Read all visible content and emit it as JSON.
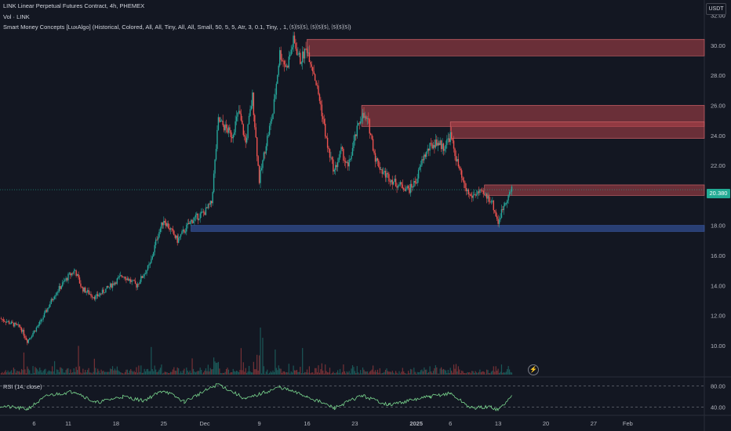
{
  "header": {
    "symbol_line": "LINK Linear Perpetual Futures Contract, 4h, PHEMEX",
    "volume_line": "Vol · LINK",
    "indicator_line": "Smart Money Concepts [LuxAlgo] (Historical, Colored, All, All, Tiny, All, All, Small, 50, 5, 5, Atr, 3, 0.1, Tiny, , 1, ⒮⒮⒮, ⒮⒮⒮, ⒮⒮⒮)",
    "rsi_line": "RSI (14, close)"
  },
  "currency": "USDT",
  "last_price_label": "20.380",
  "colors": {
    "background": "#131722",
    "up": "#26a69a",
    "down": "#ef5350",
    "supply_zone": "#b2444a",
    "demand_zone": "#2f4a8a",
    "rsi_line": "#7bd88f",
    "axis_text": "#b2b5be"
  },
  "chart_data": {
    "type": "candlestick",
    "title": "LINK Linear Perpetual Futures Contract, 4h, PHEMEX",
    "timeframe": "4h",
    "price_axis": {
      "ticks": [
        10,
        12,
        14,
        16,
        18,
        20,
        22,
        24,
        26,
        28,
        30,
        32
      ],
      "tick_labels": [
        "10.00",
        "12.00",
        "14.00",
        "16.00",
        "18.00",
        "20.00",
        "22.00",
        "24.00",
        "26.00",
        "28.00",
        "30.00",
        "32.00"
      ],
      "range": [
        9.0,
        32.5
      ]
    },
    "time_axis": {
      "labels": [
        "6",
        "11",
        "18",
        "25",
        "Dec",
        "9",
        "16",
        "23",
        "2025",
        "6",
        "13",
        "20",
        "27",
        "Feb"
      ]
    },
    "price_path": [
      {
        "date": "2024-11-01",
        "close": 11.8
      },
      {
        "date": "2024-11-04",
        "close": 11.2
      },
      {
        "date": "2024-11-05",
        "close": 10.3
      },
      {
        "date": "2024-11-07",
        "close": 11.6
      },
      {
        "date": "2024-11-09",
        "close": 13.4
      },
      {
        "date": "2024-11-11",
        "close": 14.6
      },
      {
        "date": "2024-11-12",
        "close": 15.0
      },
      {
        "date": "2024-11-13",
        "close": 13.8
      },
      {
        "date": "2024-11-15",
        "close": 13.2
      },
      {
        "date": "2024-11-17",
        "close": 13.9
      },
      {
        "date": "2024-11-19",
        "close": 14.7
      },
      {
        "date": "2024-11-21",
        "close": 14.0
      },
      {
        "date": "2024-11-23",
        "close": 15.4
      },
      {
        "date": "2024-11-24",
        "close": 17.2
      },
      {
        "date": "2024-11-25",
        "close": 18.4
      },
      {
        "date": "2024-11-27",
        "close": 17.0
      },
      {
        "date": "2024-11-29",
        "close": 18.3
      },
      {
        "date": "2024-12-01",
        "close": 18.9
      },
      {
        "date": "2024-12-02",
        "close": 19.5
      },
      {
        "date": "2024-12-03",
        "close": 25.0
      },
      {
        "date": "2024-12-05",
        "close": 24.0
      },
      {
        "date": "2024-12-06",
        "close": 25.6
      },
      {
        "date": "2024-12-07",
        "close": 23.5
      },
      {
        "date": "2024-12-08",
        "close": 26.6
      },
      {
        "date": "2024-12-09",
        "close": 21.0
      },
      {
        "date": "2024-12-10",
        "close": 23.5
      },
      {
        "date": "2024-12-11",
        "close": 25.5
      },
      {
        "date": "2024-12-12",
        "close": 29.5
      },
      {
        "date": "2024-12-13",
        "close": 28.5
      },
      {
        "date": "2024-12-14",
        "close": 30.3
      },
      {
        "date": "2024-12-15",
        "close": 29.0
      },
      {
        "date": "2024-12-16",
        "close": 29.8
      },
      {
        "date": "2024-12-17",
        "close": 28.2
      },
      {
        "date": "2024-12-18",
        "close": 26.0
      },
      {
        "date": "2024-12-19",
        "close": 23.2
      },
      {
        "date": "2024-12-20",
        "close": 21.6
      },
      {
        "date": "2024-12-21",
        "close": 23.0
      },
      {
        "date": "2024-12-22",
        "close": 21.8
      },
      {
        "date": "2024-12-23",
        "close": 23.8
      },
      {
        "date": "2024-12-24",
        "close": 25.4
      },
      {
        "date": "2024-12-25",
        "close": 24.8
      },
      {
        "date": "2024-12-26",
        "close": 22.5
      },
      {
        "date": "2024-12-27",
        "close": 21.6
      },
      {
        "date": "2024-12-29",
        "close": 20.8
      },
      {
        "date": "2024-12-31",
        "close": 20.4
      },
      {
        "date": "2025-01-01",
        "close": 21.0
      },
      {
        "date": "2025-01-02",
        "close": 22.5
      },
      {
        "date": "2025-01-03",
        "close": 23.2
      },
      {
        "date": "2025-01-04",
        "close": 23.6
      },
      {
        "date": "2025-01-05",
        "close": 23.2
      },
      {
        "date": "2025-01-06",
        "close": 24.0
      },
      {
        "date": "2025-01-07",
        "close": 22.2
      },
      {
        "date": "2025-01-08",
        "close": 20.6
      },
      {
        "date": "2025-01-09",
        "close": 19.9
      },
      {
        "date": "2025-01-10",
        "close": 20.2
      },
      {
        "date": "2025-01-11",
        "close": 20.0
      },
      {
        "date": "2025-01-12",
        "close": 19.7
      },
      {
        "date": "2025-01-13",
        "close": 18.2
      },
      {
        "date": "2025-01-14",
        "close": 19.6
      },
      {
        "date": "2025-01-15",
        "close": 20.38
      }
    ],
    "zones": [
      {
        "kind": "supply",
        "top": 30.4,
        "bottom": 29.3
      },
      {
        "kind": "supply",
        "top": 26.0,
        "bottom": 24.6
      },
      {
        "kind": "supply",
        "top": 24.9,
        "bottom": 23.8
      },
      {
        "kind": "supply",
        "top": 20.7,
        "bottom": 20.0
      },
      {
        "kind": "demand",
        "top": 18.0,
        "bottom": 17.6
      }
    ],
    "last_price": 20.38,
    "rsi": {
      "label": "RSI (14, close)",
      "levels": [
        40,
        80
      ],
      "level_labels": [
        "40.00",
        "80.00"
      ],
      "path": [
        {
          "date": "2024-11-01",
          "value": 42
        },
        {
          "date": "2024-11-05",
          "value": 36
        },
        {
          "date": "2024-11-08",
          "value": 62
        },
        {
          "date": "2024-11-12",
          "value": 70
        },
        {
          "date": "2024-11-15",
          "value": 48
        },
        {
          "date": "2024-11-19",
          "value": 60
        },
        {
          "date": "2024-11-22",
          "value": 52
        },
        {
          "date": "2024-11-25",
          "value": 72
        },
        {
          "date": "2024-11-28",
          "value": 50
        },
        {
          "date": "2024-12-03",
          "value": 84
        },
        {
          "date": "2024-12-07",
          "value": 55
        },
        {
          "date": "2024-12-12",
          "value": 78
        },
        {
          "date": "2024-12-16",
          "value": 60
        },
        {
          "date": "2024-12-20",
          "value": 38
        },
        {
          "date": "2024-12-24",
          "value": 62
        },
        {
          "date": "2024-12-28",
          "value": 44
        },
        {
          "date": "2025-01-03",
          "value": 60
        },
        {
          "date": "2025-01-06",
          "value": 66
        },
        {
          "date": "2025-01-09",
          "value": 38
        },
        {
          "date": "2025-01-12",
          "value": 40
        },
        {
          "date": "2025-01-13",
          "value": 34
        },
        {
          "date": "2025-01-15",
          "value": 60
        }
      ]
    }
  }
}
